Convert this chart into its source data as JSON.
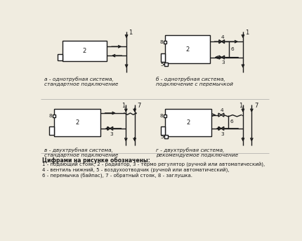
{
  "bg_color": "#f0ece0",
  "line_color": "#1a1a1a",
  "title_a": "а - однотрубная система,\nстандартное подключение",
  "title_b": "б - однотрубная система,\nподключение с перемычкой",
  "title_v": "в - двухтрубная система,\nстандартное подключение",
  "title_g": "г - двухтрубная система,\nрекомендуемое подключение",
  "legend_title": "Цифрами на рисунке обозначены:",
  "legend_line1": "1 - подающий стояк, 2 - радиатор, 3 - термо регулятор (ручной или автоматический),",
  "legend_line2": "4 - вентиль нижний, 5 - воздухоотводчик (ручной или автоматический),",
  "legend_line3": "6 - перемычка (байпас), 7 - обратный стояк, 8 - заглушка."
}
